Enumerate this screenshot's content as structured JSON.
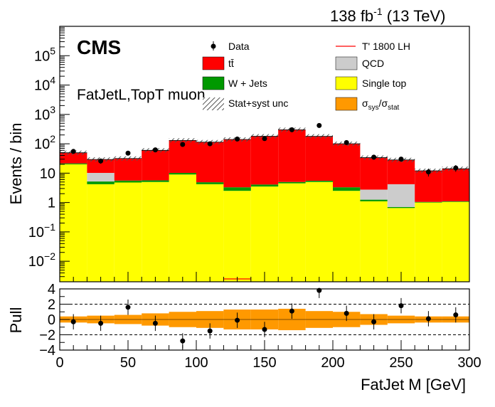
{
  "header": {
    "lumi": "138 fb",
    "lumi_exp": "-1",
    "energy": "(13 TeV)"
  },
  "labels": {
    "experiment": "CMS",
    "channel": "FatJetL,TopT muon"
  },
  "legend": {
    "data": "Data",
    "signal": "T' 1800 LH",
    "ttbar": "tt̄",
    "qcd": "QCD",
    "wjets": "W + Jets",
    "singletop": "Single top",
    "unc": "Stat+syst unc",
    "ratio_sigma": "σ",
    "ratio_sys_sub": "sys",
    "ratio_slash": "/σ",
    "ratio_stat_sub": "stat"
  },
  "colors": {
    "ttbar": "#ff0000",
    "qcd": "#cccccc",
    "wjets": "#009900",
    "singletop": "#ffff00",
    "signal": "#ff0000",
    "band": "#ff9900",
    "data": "#000000"
  },
  "chart_data": [
    {
      "type": "bar",
      "stacked": true,
      "log_y": true,
      "xlabel": "",
      "ylabel": "Events / bin",
      "xlim": [
        0,
        300
      ],
      "ylim": [
        0.002,
        1000000
      ],
      "y_ticks": [
        {
          "value": 0.01,
          "base": "10",
          "exp": "−2"
        },
        {
          "value": 0.1,
          "base": "10",
          "exp": "−1"
        },
        {
          "value": 1,
          "base": "1",
          "exp": ""
        },
        {
          "value": 10,
          "base": "10",
          "exp": ""
        },
        {
          "value": 100,
          "base": "10",
          "exp": "2"
        },
        {
          "value": 1000,
          "base": "10",
          "exp": "3"
        },
        {
          "value": 10000,
          "base": "10",
          "exp": "4"
        },
        {
          "value": 100000,
          "base": "10",
          "exp": "5"
        }
      ],
      "bin_edges": [
        0,
        20,
        40,
        60,
        80,
        100,
        120,
        140,
        160,
        180,
        200,
        220,
        240,
        260,
        280,
        300
      ],
      "series": [
        {
          "name": "Single top",
          "key": "singletop",
          "values": [
            20,
            4.2,
            4.8,
            5,
            9,
            4.2,
            2.5,
            3.5,
            4.5,
            5,
            2.5,
            1.1,
            0.65,
            1,
            1.05
          ]
        },
        {
          "name": "W + Jets",
          "key": "wjets",
          "values": [
            1.5,
            1,
            0.8,
            0.7,
            1.2,
            0.7,
            0.8,
            0.6,
            0.5,
            0.5,
            0.8,
            0.15,
            0.05,
            0.05,
            0.05
          ]
        },
        {
          "name": "QCD",
          "key": "qcd",
          "values": [
            0,
            5,
            0,
            0,
            0,
            0,
            0,
            0,
            0,
            0,
            0,
            1.5,
            3.5,
            0,
            0
          ]
        },
        {
          "name": "tt̄",
          "key": "ttbar",
          "values": [
            28,
            19,
            26,
            54,
            120,
            109,
            137,
            176,
            295,
            174,
            97,
            31,
            24,
            11,
            13
          ]
        }
      ],
      "signal": {
        "name": "T' 1800 LH",
        "values": [
          0,
          0,
          0,
          0,
          0,
          0,
          0.0025,
          0,
          0,
          0,
          0,
          0,
          0,
          0,
          0
        ]
      },
      "data_points": {
        "name": "Data",
        "x": [
          10,
          30,
          50,
          70,
          90,
          110,
          130,
          150,
          170,
          190,
          210,
          230,
          250,
          270,
          290
        ],
        "y": [
          55,
          26,
          48,
          62,
          95,
          100,
          145,
          150,
          300,
          420,
          110,
          35,
          30,
          11,
          15
        ]
      }
    },
    {
      "type": "scatter",
      "xlabel": "FatJet M [GeV]",
      "ylabel": "Pull",
      "xlim": [
        0,
        300
      ],
      "ylim": [
        -4,
        4
      ],
      "x_ticks": [
        0,
        50,
        100,
        150,
        200,
        250,
        300
      ],
      "y_ticks": [
        -4,
        -2,
        0,
        2,
        4
      ],
      "x": [
        10,
        30,
        50,
        70,
        90,
        110,
        130,
        150,
        170,
        190,
        210,
        230,
        250,
        270,
        290
      ],
      "y": [
        -0.3,
        -0.5,
        1.6,
        -0.5,
        -2.8,
        -1.5,
        -0.1,
        -1.3,
        1.1,
        3.8,
        0.8,
        -0.3,
        1.8,
        0.1,
        0.6
      ],
      "band_halfwidth": [
        0.4,
        0.5,
        0.6,
        0.8,
        1.0,
        1.1,
        1.3,
        1.3,
        1.4,
        1.1,
        1.0,
        0.7,
        0.5,
        0.4,
        0.4
      ]
    }
  ]
}
